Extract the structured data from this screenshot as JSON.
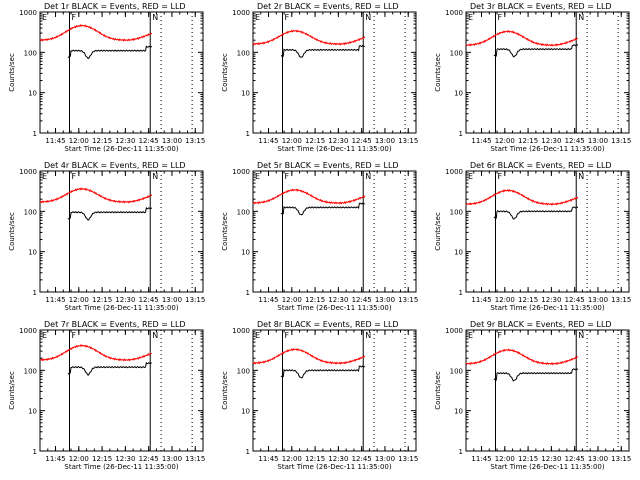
{
  "chart_data": {
    "type": "line",
    "panels": [
      {
        "title": "Det 1r BLACK = Events, RED = LLD",
        "events_base": 110,
        "lld_base": 200,
        "lld_peak": 460
      },
      {
        "title": "Det 2r BLACK = Events, RED = LLD",
        "events_base": 115,
        "lld_base": 160,
        "lld_peak": 340
      },
      {
        "title": "Det 3r BLACK = Events, RED = LLD",
        "events_base": 120,
        "lld_base": 150,
        "lld_peak": 330
      },
      {
        "title": "Det 4r BLACK = Events, RED = LLD",
        "events_base": 95,
        "lld_base": 170,
        "lld_peak": 360
      },
      {
        "title": "Det 5r BLACK = Events, RED = LLD",
        "events_base": 125,
        "lld_base": 160,
        "lld_peak": 340
      },
      {
        "title": "Det 6r BLACK = Events, RED = LLD",
        "events_base": 100,
        "lld_base": 150,
        "lld_peak": 330
      },
      {
        "title": "Det 7r BLACK = Events, RED = LLD",
        "events_base": 120,
        "lld_base": 180,
        "lld_peak": 410
      },
      {
        "title": "Det 8r BLACK = Events, RED = LLD",
        "events_base": 100,
        "lld_base": 150,
        "lld_peak": 330
      },
      {
        "title": "Det 9r BLACK = Events, RED = LLD",
        "events_base": 85,
        "lld_base": 145,
        "lld_peak": 320
      }
    ],
    "xlabel": "Start Time (26-Dec-11 11:35:00)",
    "ylabel": "Counts/sec",
    "x_ticks": [
      "11:45",
      "12:00",
      "12:15",
      "12:30",
      "12:45",
      "13:00",
      "13:15"
    ],
    "x_tick_minutes": [
      10,
      25,
      40,
      55,
      70,
      85,
      100
    ],
    "xlim_minutes": [
      0,
      105
    ],
    "y_scale": "log",
    "y_ticks": [
      "1",
      "10",
      "100",
      "1000"
    ],
    "ylim": [
      1,
      1000
    ],
    "markers": [
      {
        "label": "E",
        "minute": 0,
        "line": "none"
      },
      {
        "label": "F",
        "minute": 19,
        "line": "solid"
      },
      {
        "label": "N",
        "minute": 71,
        "line": "solid"
      },
      {
        "label": "",
        "minute": 78,
        "line": "dotted"
      },
      {
        "label": "",
        "minute": 98,
        "line": "dotted"
      }
    ],
    "series_colors": {
      "events": "#000000",
      "lld": "#ff0000"
    },
    "events_window_minutes": [
      18,
      72
    ],
    "grid": false
  }
}
